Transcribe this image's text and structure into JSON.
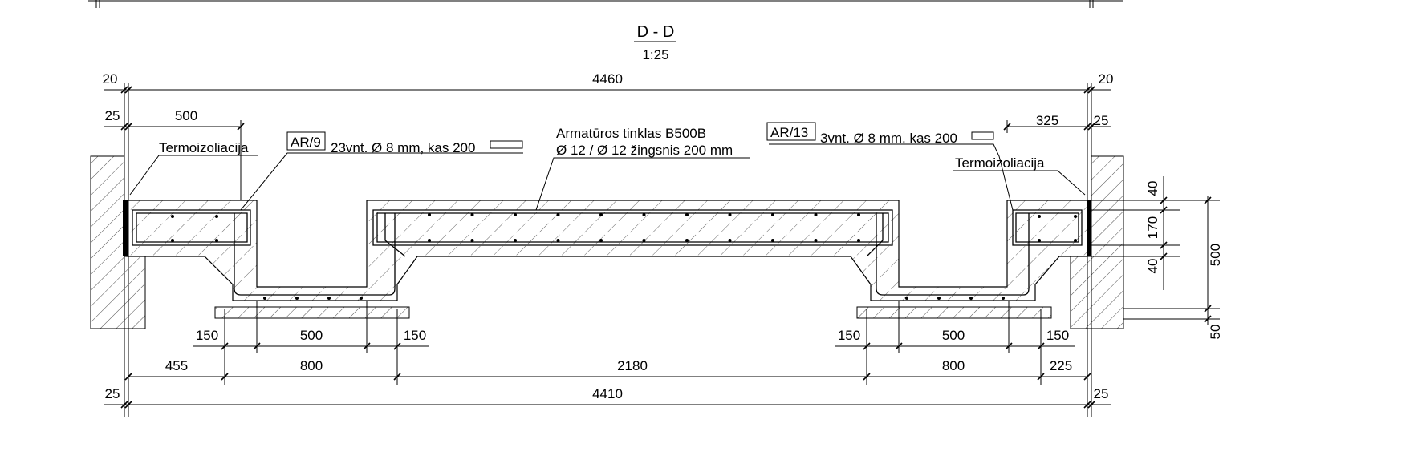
{
  "title": "D - D",
  "scale": "1:25",
  "dimensions": {
    "top": [
      20,
      4460,
      20
    ],
    "second": [
      25,
      500,
      325,
      25
    ],
    "right": [
      40,
      170,
      40,
      500,
      50
    ],
    "bottom_row1": [
      150,
      500,
      150,
      150,
      500,
      150
    ],
    "bottom_row2": [
      455,
      800,
      2180,
      800,
      225
    ],
    "bottom_row3": [
      25,
      4410,
      25
    ]
  },
  "annotations": {
    "insulation_left": "Termoizoliacija",
    "insulation_right": "Termoizoliacija",
    "rebar_left_tag": "AR/9",
    "rebar_left_text": "23vnt. Ø 8 mm, kas 200",
    "rebar_right_tag": "AR/13",
    "rebar_right_text": "3vnt. Ø 8 mm, kas 200",
    "mesh_line1": "Armatūros tinklas B500B",
    "mesh_line2": "Ø 12 / Ø 12 žingsnis 200 mm"
  }
}
